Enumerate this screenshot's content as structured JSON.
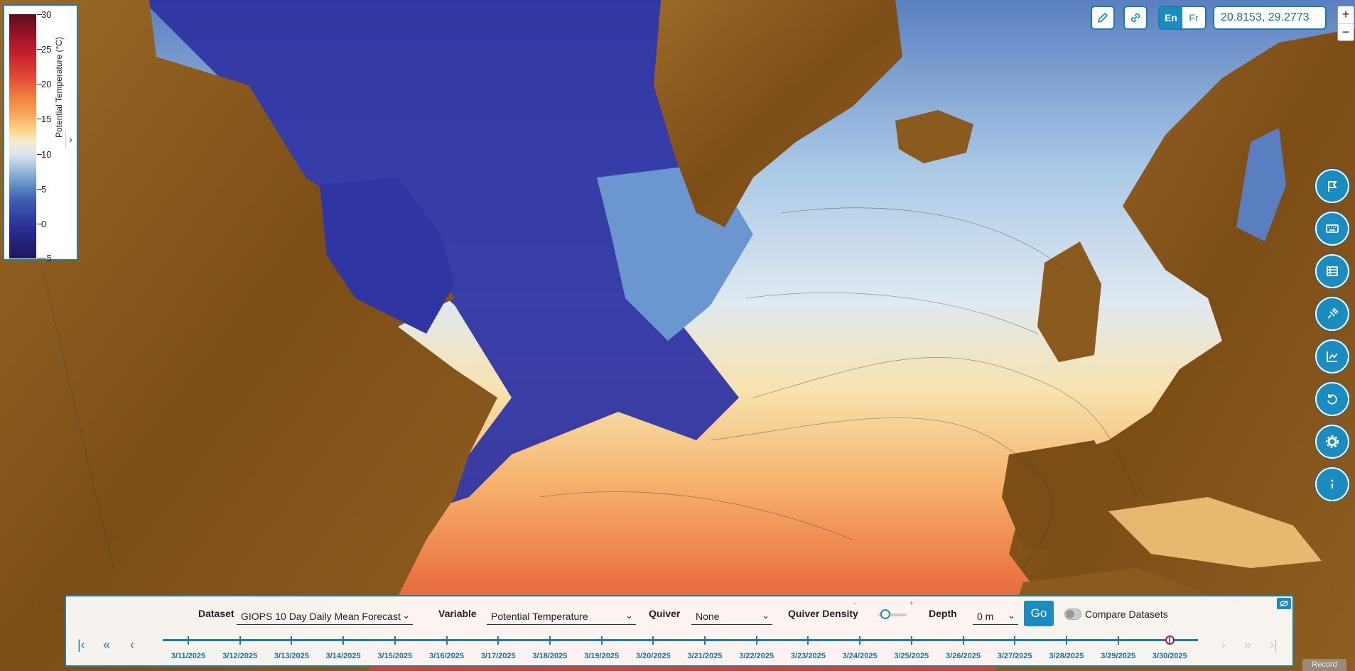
{
  "legend": {
    "title": "Potential Temperature (°C)",
    "ticks": [
      "30",
      "25",
      "20",
      "15",
      "10",
      "5",
      "0",
      "−5"
    ]
  },
  "toolbar": {
    "draw_icon": "pencil-icon",
    "link_icon": "link-icon",
    "lang_en": "En",
    "lang_fr": "Fr",
    "coordinates": "20.8153, 29.2773",
    "zoom_in": "+",
    "zoom_out": "−"
  },
  "side_buttons": [
    {
      "icon": "flag-icon"
    },
    {
      "icon": "keyboard-icon"
    },
    {
      "icon": "table-icon"
    },
    {
      "icon": "satellite-icon"
    },
    {
      "icon": "chart-icon"
    },
    {
      "icon": "reset-icon"
    },
    {
      "icon": "gear-icon"
    },
    {
      "icon": "info-icon"
    }
  ],
  "panel": {
    "dataset_label": "Dataset",
    "dataset_value": "GIOPS 10 Day Daily Mean Forecast",
    "variable_label": "Variable",
    "variable_value": "Potential Temperature",
    "quiver_label": "Quiver",
    "quiver_value": "None",
    "quiver_density_label": "Quiver Density",
    "slider_minus": "-",
    "slider_plus": "+",
    "depth_label": "Depth",
    "depth_value": "0 m",
    "go_label": "Go",
    "compare_label": "Compare Datasets"
  },
  "timeline": {
    "dates": [
      "3/11/2025",
      "3/12/2025",
      "3/13/2025",
      "3/14/2025",
      "3/15/2025",
      "3/16/2025",
      "3/17/2025",
      "3/18/2025",
      "3/19/2025",
      "3/20/2025",
      "3/21/2025",
      "3/22/2025",
      "3/23/2025",
      "3/24/2025",
      "3/25/2025",
      "3/26/2025",
      "3/27/2025",
      "3/28/2025",
      "3/29/2025",
      "3/30/2025"
    ],
    "current": "3/30/2025"
  },
  "record_label": "Record",
  "colors": {
    "accent": "#1a8cc0",
    "land": "#8a5a1f",
    "cold_water": "#2b2e96",
    "warm_water": "#e24a35"
  }
}
